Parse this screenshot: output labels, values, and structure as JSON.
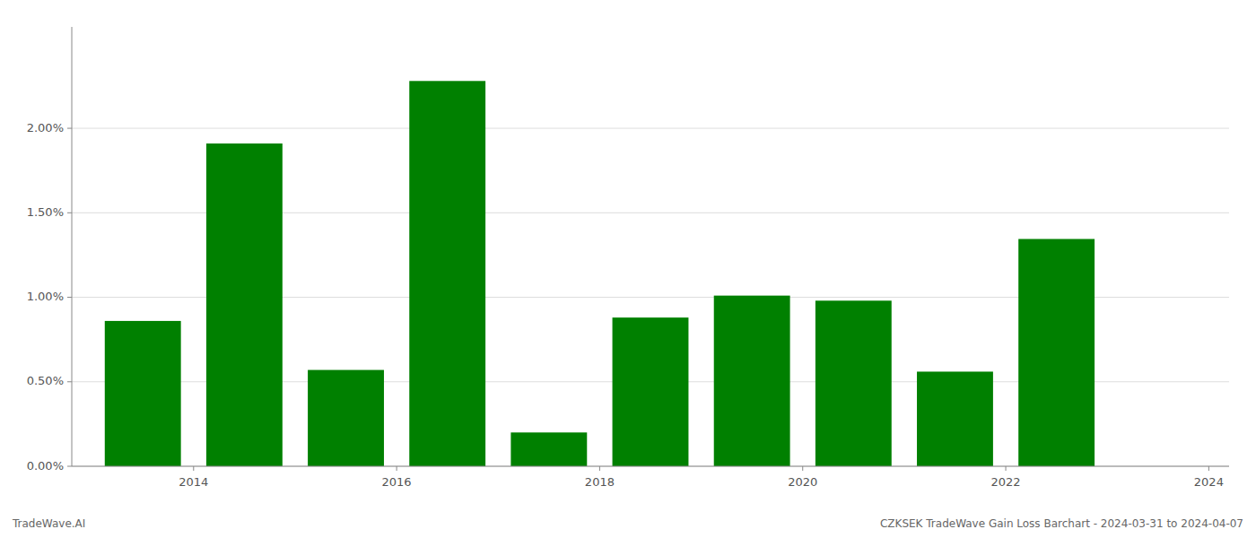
{
  "chart_data": {
    "type": "bar",
    "x": [
      2014,
      2015,
      2016,
      2017,
      2018,
      2019,
      2020,
      2021,
      2022,
      2023
    ],
    "values": [
      0.0086,
      0.0191,
      0.0057,
      0.0228,
      0.002,
      0.0088,
      0.0101,
      0.0098,
      0.0056,
      0.01345
    ],
    "color": "#008000",
    "xlim": [
      2013.3,
      2024.7
    ],
    "xticks": [
      {
        "value": 2014.5,
        "label": "2014"
      },
      {
        "value": 2016.5,
        "label": "2016"
      },
      {
        "value": 2018.5,
        "label": "2018"
      },
      {
        "value": 2020.5,
        "label": "2020"
      },
      {
        "value": 2022.5,
        "label": "2022"
      },
      {
        "value": 2024.5,
        "label": "2024"
      }
    ],
    "ylim": [
      0,
      0.026
    ],
    "yticks": [
      {
        "value": 0.0,
        "label": "0.00%"
      },
      {
        "value": 0.005,
        "label": "0.50%"
      },
      {
        "value": 0.01,
        "label": "1.00%"
      },
      {
        "value": 0.015,
        "label": "1.50%"
      },
      {
        "value": 0.02,
        "label": "2.00%"
      }
    ],
    "grid": true,
    "annotations": [
      "TradeWave.AI",
      "CZKSEK TradeWave Gain Loss Barchart - 2024-03-31 to 2024-04-07"
    ]
  }
}
